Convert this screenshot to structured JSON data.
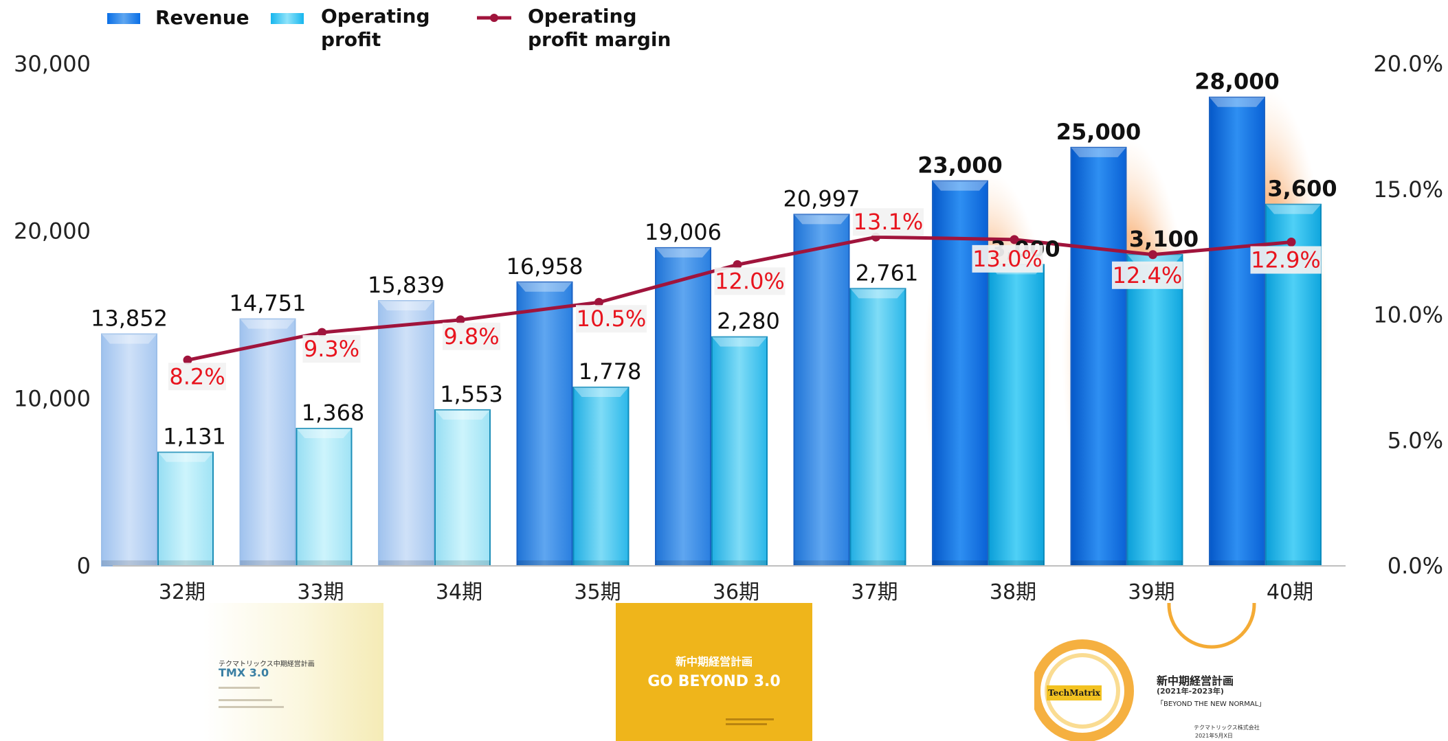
{
  "chart_data": {
    "type": "bar",
    "categories": [
      "32期",
      "33期",
      "34期",
      "35期",
      "36期",
      "37期",
      "38期",
      "39期",
      "40期"
    ],
    "series": [
      {
        "name": "Revenue",
        "axis": "left",
        "values": [
          13852,
          14751,
          15839,
          16958,
          19006,
          20997,
          23000,
          25000,
          28000
        ],
        "labels": [
          "13,852",
          "14,751",
          "15,839",
          "16,958",
          "19,006",
          "20,997",
          "23,000",
          "25,000",
          "28,000"
        ]
      },
      {
        "name": "Operating profit",
        "axis": "left",
        "values": [
          1131,
          1368,
          1553,
          1778,
          2280,
          2761,
          3000,
          3100,
          3600
        ],
        "labels": [
          "1,131",
          "1,368",
          "1,553",
          "1,778",
          "2,280",
          "2,761",
          "3,000",
          "3,100",
          "3,600"
        ]
      },
      {
        "name": "Operating profit margin",
        "type": "line",
        "axis": "right",
        "values": [
          8.2,
          9.3,
          9.8,
          10.5,
          12.0,
          13.1,
          13.0,
          12.4,
          12.9
        ],
        "labels": [
          "8.2%",
          "9.3%",
          "9.8%",
          "10.5%",
          "12.0%",
          "13.1%",
          "13.0%",
          "12.4%",
          "12.9%"
        ]
      }
    ],
    "left_axis": {
      "range": [
        0,
        30000
      ],
      "ticks": [
        "0",
        "10,000",
        "20,000",
        "30,000"
      ]
    },
    "right_axis": {
      "range": [
        0,
        20
      ],
      "ticks": [
        "0.0%",
        "5.0%",
        "10.0%",
        "15.0%",
        "20.0%"
      ]
    },
    "legend": {
      "position": "top-left",
      "entries": [
        "Revenue",
        "Operating\nprofit",
        "Operating\nprofit margin"
      ]
    },
    "highlighted_categories": [
      "38期",
      "39期",
      "40期"
    ],
    "grid": false,
    "colors": {
      "revenue_past": "#b8d3f4",
      "profit_past": "#b3ecf9",
      "revenue_actual": "#2f8be8",
      "profit_actual": "#3bc3ee",
      "revenue_plan": "#0a6fe6",
      "profit_plan": "#16b6ee",
      "margin_line": "#a0143c",
      "margin_label": "#e8141e",
      "highlight_glow": "#f7c89a"
    }
  },
  "thumbnails": {
    "tmx": {
      "title": "テクマトリックス中期経営計画",
      "subtitle": "TMX 3.0"
    },
    "go_beyond": {
      "title": "新中期経営計画",
      "subtitle": "GO BEYOND 3.0"
    },
    "new_normal": {
      "logo": "TechMatrix",
      "title": "新中期経営計画",
      "years": "(2021年-2023年)",
      "tagline": "「BEYOND THE NEW NORMAL」",
      "company": "テクマトリックス株式会社",
      "date": "2021年5月X日"
    }
  }
}
